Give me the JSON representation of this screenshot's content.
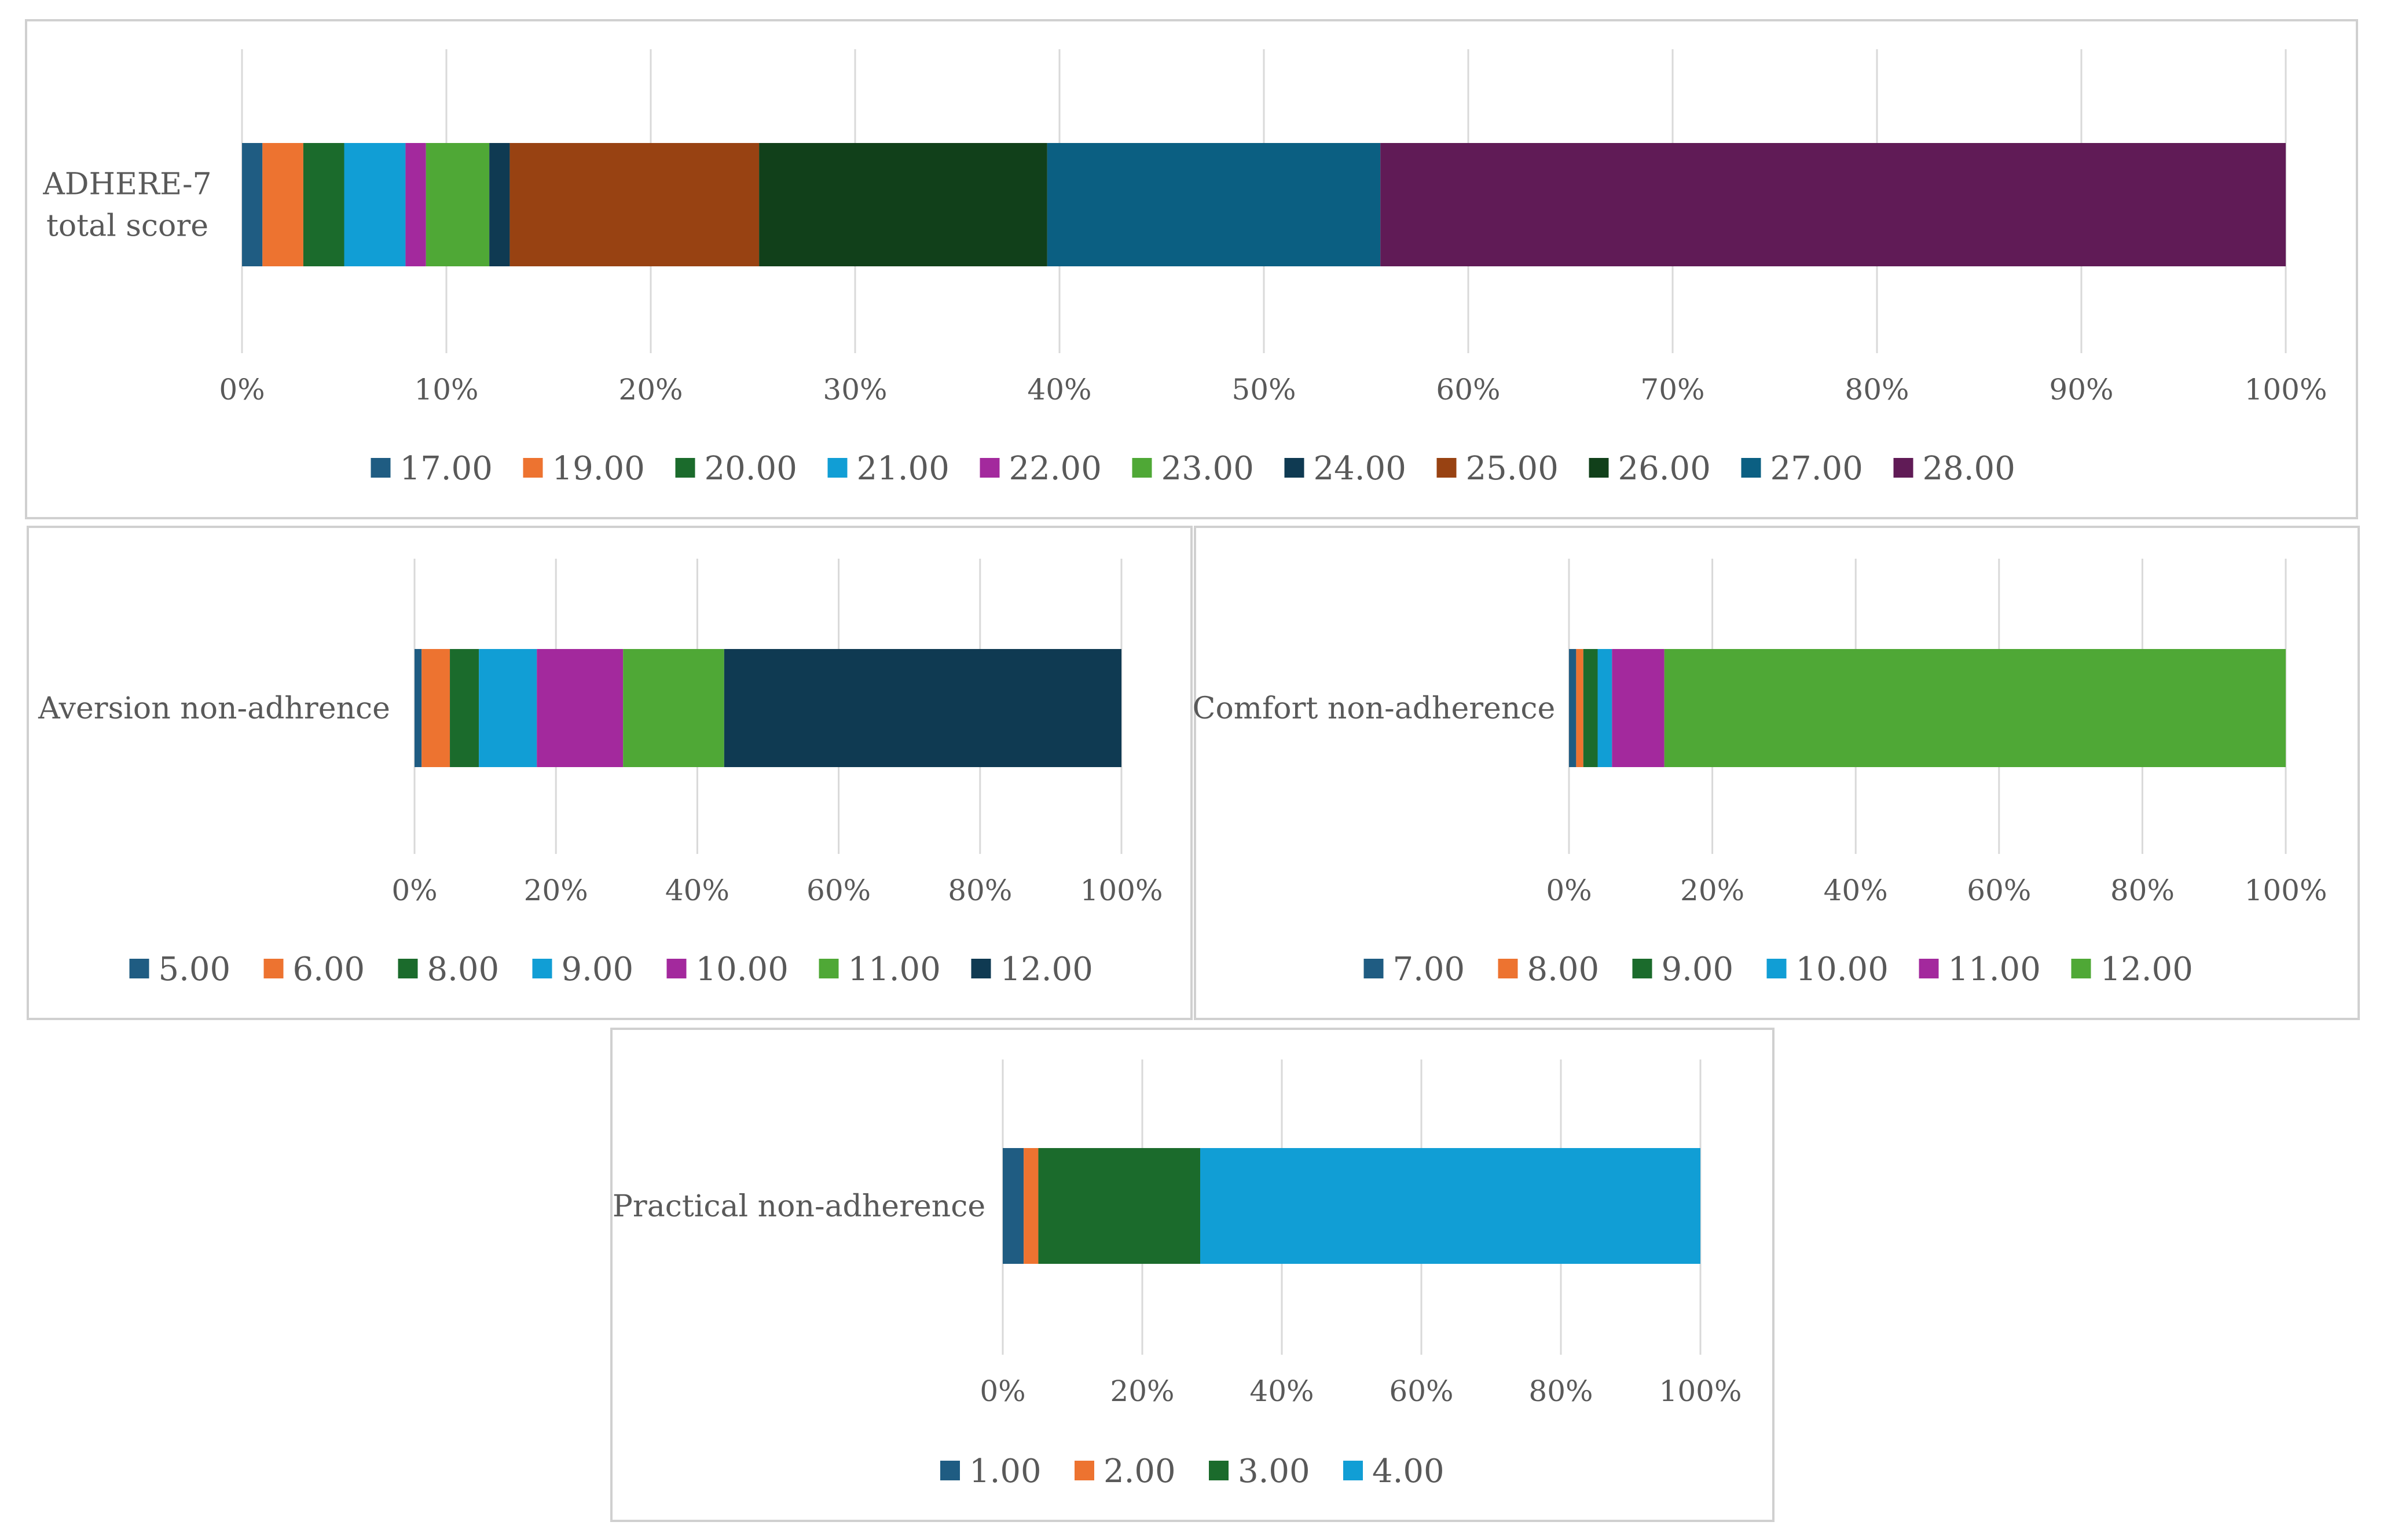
{
  "chart_data": [
    {
      "type": "bar",
      "orientation": "horizontal",
      "stacked": "percent",
      "category": "ADHERE-7 total score",
      "category_lines": [
        "ADHERE-7",
        "total score"
      ],
      "ticks": [
        "0%",
        "10%",
        "20%",
        "30%",
        "40%",
        "50%",
        "60%",
        "70%",
        "80%",
        "90%",
        "100%"
      ],
      "xlim": [
        0,
        100
      ],
      "grid": true,
      "legend_position": "bottom",
      "series": [
        {
          "name": "17.00",
          "value": 1.0,
          "color": "#1f5c82"
        },
        {
          "name": "19.00",
          "value": 2.0,
          "color": "#ed7330"
        },
        {
          "name": "20.00",
          "value": 2.0,
          "color": "#1b6b2c"
        },
        {
          "name": "21.00",
          "value": 3.0,
          "color": "#119ed5"
        },
        {
          "name": "22.00",
          "value": 1.0,
          "color": "#a3299d"
        },
        {
          "name": "23.00",
          "value": 3.1,
          "color": "#4fa836"
        },
        {
          "name": "24.00",
          "value": 1.0,
          "color": "#0f3a52"
        },
        {
          "name": "25.00",
          "value": 12.2,
          "color": "#984212"
        },
        {
          "name": "26.00",
          "value": 14.1,
          "color": "#11401a"
        },
        {
          "name": "27.00",
          "value": 16.3,
          "color": "#0b5f82"
        },
        {
          "name": "28.00",
          "value": 44.3,
          "color": "#601b56"
        }
      ]
    },
    {
      "type": "bar",
      "orientation": "horizontal",
      "stacked": "percent",
      "category": "Aversion non-adhrence",
      "category_lines": [
        "Aversion non-adhrence"
      ],
      "ticks": [
        "0%",
        "20%",
        "40%",
        "60%",
        "80%",
        "100%"
      ],
      "xlim": [
        0,
        100
      ],
      "grid": true,
      "legend_position": "bottom",
      "series": [
        {
          "name": "5.00",
          "value": 1.0,
          "color": "#1f5c82"
        },
        {
          "name": "6.00",
          "value": 4.0,
          "color": "#ed7330"
        },
        {
          "name": "8.00",
          "value": 4.1,
          "color": "#1b6b2c"
        },
        {
          "name": "9.00",
          "value": 8.2,
          "color": "#119ed5"
        },
        {
          "name": "10.00",
          "value": 12.2,
          "color": "#a3299d"
        },
        {
          "name": "11.00",
          "value": 14.3,
          "color": "#4fa836"
        },
        {
          "name": "12.00",
          "value": 56.2,
          "color": "#0f3a52"
        }
      ]
    },
    {
      "type": "bar",
      "orientation": "horizontal",
      "stacked": "percent",
      "category": "Comfort non-adherence",
      "category_lines": [
        "Comfort non-adherence"
      ],
      "ticks": [
        "0%",
        "20%",
        "40%",
        "60%",
        "80%",
        "100%"
      ],
      "xlim": [
        0,
        100
      ],
      "grid": true,
      "legend_position": "bottom",
      "series": [
        {
          "name": "7.00",
          "value": 1.0,
          "color": "#1f5c82"
        },
        {
          "name": "8.00",
          "value": 1.0,
          "color": "#ed7330"
        },
        {
          "name": "9.00",
          "value": 2.0,
          "color": "#1b6b2c"
        },
        {
          "name": "10.00",
          "value": 2.0,
          "color": "#119ed5"
        },
        {
          "name": "11.00",
          "value": 7.3,
          "color": "#a3299d"
        },
        {
          "name": "12.00",
          "value": 86.7,
          "color": "#4fa836"
        }
      ]
    },
    {
      "type": "bar",
      "orientation": "horizontal",
      "stacked": "percent",
      "category": "Practical non-adherence",
      "category_lines": [
        "Practical non-adherence"
      ],
      "ticks": [
        "0%",
        "20%",
        "40%",
        "60%",
        "80%",
        "100%"
      ],
      "xlim": [
        0,
        100
      ],
      "grid": true,
      "legend_position": "bottom",
      "series": [
        {
          "name": "1.00",
          "value": 3.0,
          "color": "#1f5c82"
        },
        {
          "name": "2.00",
          "value": 2.1,
          "color": "#ed7330"
        },
        {
          "name": "3.00",
          "value": 23.2,
          "color": "#1b6b2c"
        },
        {
          "name": "4.00",
          "value": 71.7,
          "color": "#119ed5"
        }
      ]
    }
  ]
}
